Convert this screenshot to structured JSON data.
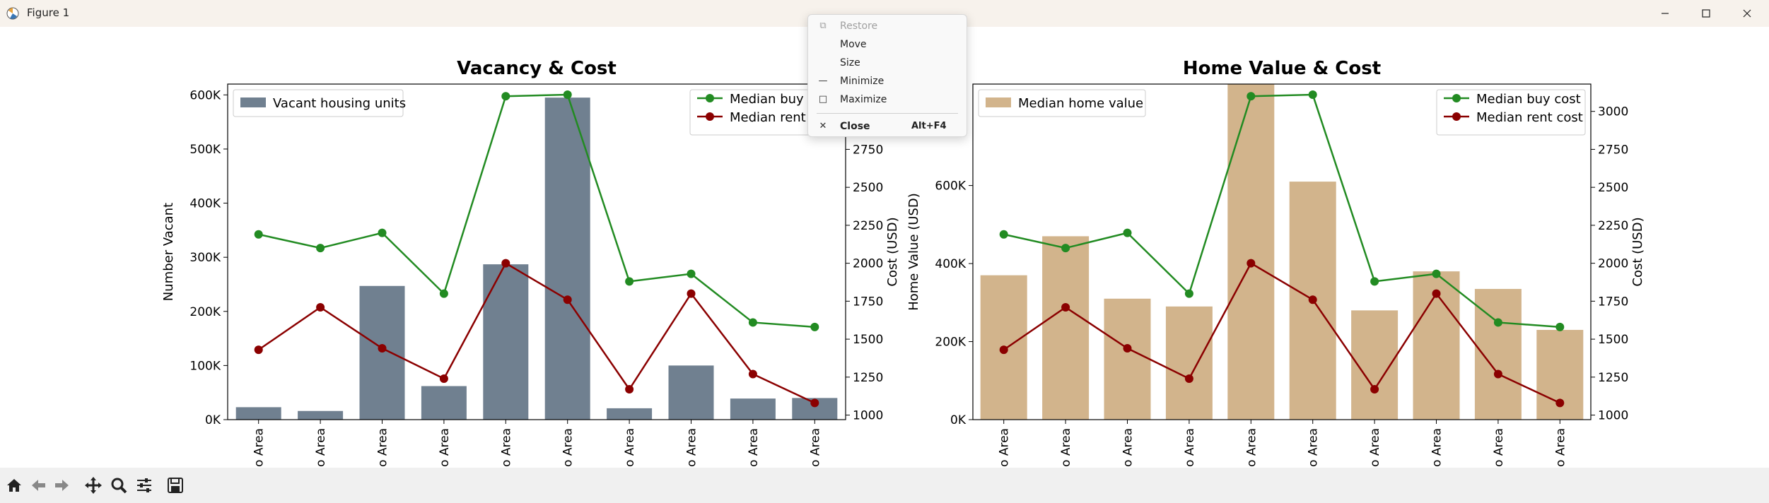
{
  "window": {
    "title": "Figure 1"
  },
  "system_menu": {
    "items": [
      {
        "label": "Restore",
        "icon": "restore-icon",
        "enabled": false
      },
      {
        "label": "Move",
        "icon": "",
        "enabled": true
      },
      {
        "label": "Size",
        "icon": "",
        "enabled": true
      },
      {
        "label": "Minimize",
        "icon": "minimize-icon",
        "enabled": true
      },
      {
        "label": "Maximize",
        "icon": "maximize-icon",
        "enabled": true
      },
      {
        "label": "Close",
        "icon": "close-icon",
        "enabled": true,
        "shortcut": "Alt+F4"
      }
    ]
  },
  "toolbar": {
    "buttons": [
      "home-icon",
      "back-icon",
      "forward-icon",
      "pan-icon",
      "zoom-icon",
      "configure-subplots-icon",
      "save-icon"
    ]
  },
  "chart_data": [
    {
      "type": "bar",
      "title": "Vacancy & Cost",
      "xlabel": "",
      "ylabel": "Number Vacant",
      "y2label": "Cost (USD)",
      "categories": [
        "o Area",
        "o Area",
        "o Area",
        "o Area",
        "o Area",
        "o Area",
        "o Area",
        "o Area",
        "o Area",
        "o Area"
      ],
      "bar_color": "#708090",
      "ylim": [
        0,
        620000
      ],
      "yticks": [
        "0K",
        "100K",
        "200K",
        "300K",
        "400K",
        "500K",
        "600K"
      ],
      "y2lim": [
        970,
        3180
      ],
      "y2ticks": [
        "1000",
        "1250",
        "1500",
        "1750",
        "2000",
        "2250",
        "2500",
        "2750",
        "3000"
      ],
      "series": [
        {
          "name": "Vacant housing units",
          "kind": "bar",
          "values": [
            23000,
            16000,
            247000,
            62000,
            287000,
            595000,
            21000,
            100000,
            39000,
            40000
          ]
        },
        {
          "name": "Median buy cost",
          "kind": "line",
          "axis": "right",
          "color": "#228b22",
          "values": [
            2190,
            2100,
            2200,
            1800,
            3100,
            3110,
            1880,
            1930,
            1610,
            1580
          ]
        },
        {
          "name": "Median rent cost",
          "kind": "line",
          "axis": "right",
          "color": "#8b0000",
          "values": [
            1430,
            1710,
            1440,
            1240,
            2000,
            1760,
            1170,
            1800,
            1270,
            1080
          ]
        }
      ],
      "legend_left": "top-left",
      "legend_right": "top-right",
      "legend_right_visible": [
        "Median buy c",
        "Median rent"
      ],
      "grid": false
    },
    {
      "type": "bar",
      "title": "Home Value & Cost",
      "xlabel": "",
      "ylabel": "Home Value (USD)",
      "y2label": "Cost (USD)",
      "categories": [
        "o Area",
        "o Area",
        "o Area",
        "o Area",
        "o Area",
        "o Area",
        "o Area",
        "o Area",
        "o Area",
        "o Area"
      ],
      "bar_color": "#d2b48c",
      "ylim": [
        0,
        860000
      ],
      "yticks": [
        "0K",
        "200K",
        "400K",
        "600K"
      ],
      "y2lim": [
        970,
        3180
      ],
      "y2ticks": [
        "1000",
        "1250",
        "1500",
        "1750",
        "2000",
        "2250",
        "2500",
        "2750",
        "3000"
      ],
      "series": [
        {
          "name": "Median home value",
          "kind": "bar",
          "values": [
            370000,
            470000,
            310000,
            290000,
            860000,
            610000,
            280000,
            380000,
            335000,
            230000
          ]
        },
        {
          "name": "Median buy cost",
          "kind": "line",
          "axis": "right",
          "color": "#228b22",
          "values": [
            2190,
            2100,
            2200,
            1800,
            3100,
            3110,
            1880,
            1930,
            1610,
            1580
          ]
        },
        {
          "name": "Median rent cost",
          "kind": "line",
          "axis": "right",
          "color": "#8b0000",
          "values": [
            1430,
            1710,
            1440,
            1240,
            2000,
            1760,
            1170,
            1800,
            1270,
            1080
          ]
        }
      ],
      "legend_left": "top-left",
      "legend_right": "top-right",
      "grid": false
    }
  ]
}
